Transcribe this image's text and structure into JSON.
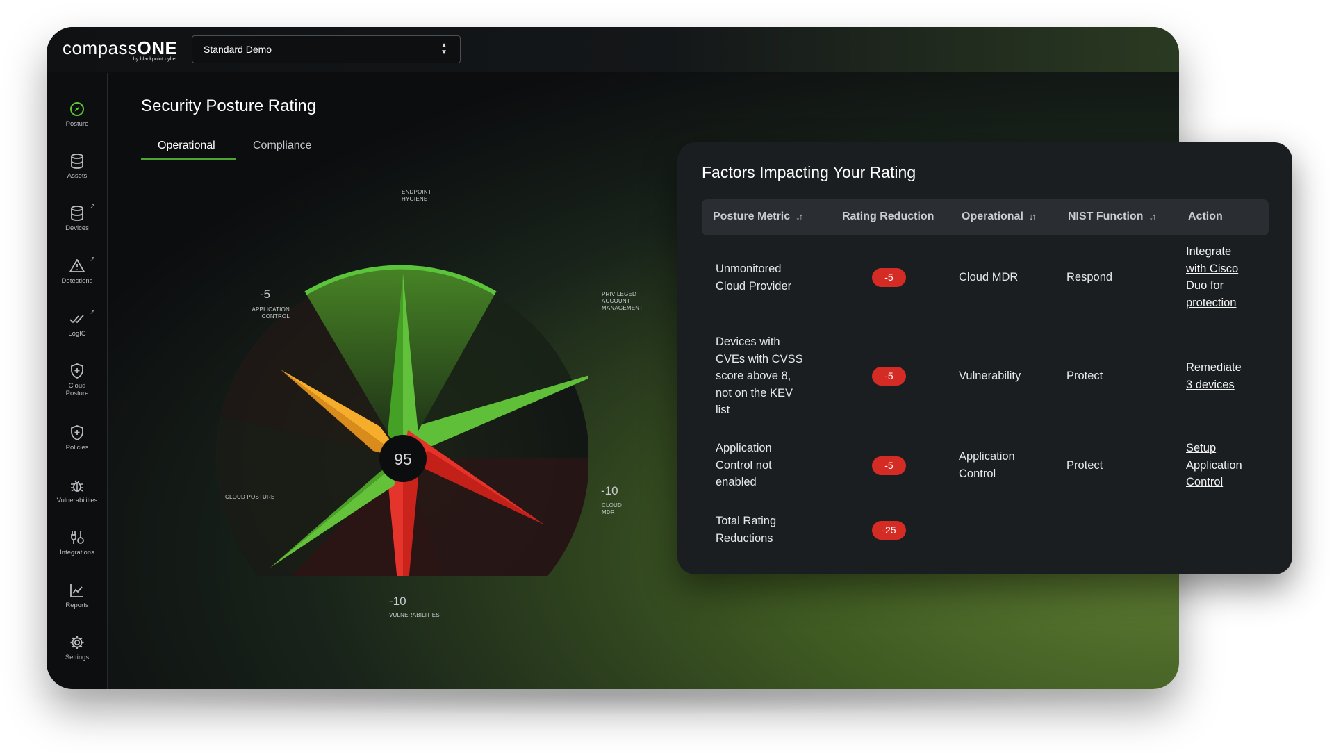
{
  "app": {
    "logo_main": "compass",
    "logo_bold": "ONE",
    "logo_sub": "by blackpoint cyber",
    "org_select_value": "Standard Demo"
  },
  "sidebar": {
    "items": [
      {
        "label": "Posture",
        "icon": "compass-icon",
        "active": true
      },
      {
        "label": "Assets",
        "icon": "database-icon"
      },
      {
        "label": "Devices",
        "icon": "database-icon",
        "external": true
      },
      {
        "label": "Detections",
        "icon": "warning-triangle-icon",
        "external": true
      },
      {
        "label": "LogIC",
        "icon": "double-check-icon",
        "external": true
      },
      {
        "label": "Cloud",
        "label2": "Posture",
        "icon": "shield-plus-icon"
      },
      {
        "label": "Policies",
        "icon": "shield-plus-icon"
      },
      {
        "label": "Vulnerabilities",
        "icon": "bug-icon"
      },
      {
        "label": "Integrations",
        "icon": "integrations-icon"
      },
      {
        "label": "Reports",
        "icon": "line-chart-icon"
      },
      {
        "label": "Settings",
        "icon": "gear-icon"
      }
    ]
  },
  "main": {
    "title": "Security Posture Rating",
    "tabs": [
      "Operational",
      "Compliance"
    ],
    "active_tab": "Operational"
  },
  "radar": {
    "score": "95",
    "labels": {
      "endpoint_hygiene_1": "ENDPOINT",
      "endpoint_hygiene_2": "HYGIENE",
      "pam_1": "PRIVILEGED",
      "pam_2": "ACCOUNT",
      "pam_3": "MANAGEMENT",
      "app_control_val": "-5",
      "app_control_1": "APPLICATION",
      "app_control_2": "CONTROL",
      "cloud_posture": "CLOUD POSTURE",
      "cloud_mdr_val": "-10",
      "cloud_mdr": "CLOUD MDR",
      "vuln_val": "-10",
      "vuln": "VULNERABILITIES"
    },
    "colors": {
      "green": "#4fb22a",
      "orange": "#f0a026",
      "red": "#d7261f",
      "good": "#5bc43a"
    }
  },
  "panel": {
    "title": "Factors Impacting Your Rating",
    "headers": [
      "Posture Metric",
      "Rating Reduction",
      "Operational",
      "NIST Function",
      "Action"
    ],
    "rows": [
      {
        "metric": [
          "Unmonitored",
          "Cloud Provider"
        ],
        "reduction": "-5",
        "operational": [
          "Cloud MDR"
        ],
        "nist": "Respond",
        "action": [
          "Integrate",
          "with Cisco",
          "Duo for",
          "protection"
        ]
      },
      {
        "metric": [
          "Devices with",
          "CVEs with CVSS",
          "score above 8,",
          "not on the KEV",
          "list"
        ],
        "reduction": "-5",
        "operational": [
          "Vulnerability"
        ],
        "nist": "Protect",
        "action": [
          "Remediate",
          "3 devices"
        ]
      },
      {
        "metric": [
          "Application",
          "Control not",
          "enabled"
        ],
        "reduction": "-5",
        "operational": [
          "Application",
          "Control"
        ],
        "nist": "Protect",
        "action": [
          "Setup",
          "Application",
          "Control"
        ]
      }
    ],
    "total": {
      "label": [
        "Total Rating",
        "Reductions"
      ],
      "value": "-25"
    }
  }
}
